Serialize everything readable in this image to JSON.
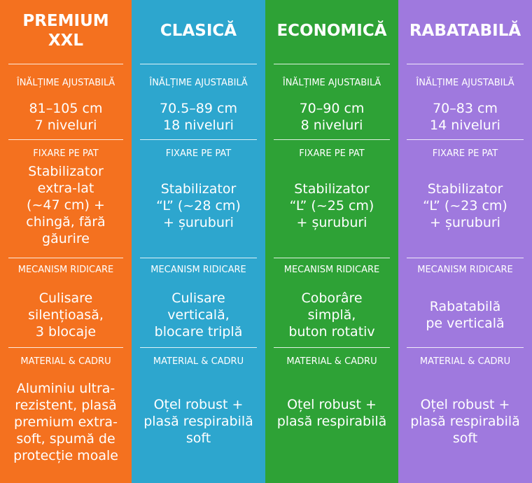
{
  "columns": [
    {
      "title": "PREMIUM\nXXL",
      "height_label": "ÎNĂLȚIME AJUSTABILĂ",
      "height_value": "81–105 cm\n7 niveluri",
      "fix_label": "FIXARE PE PAT",
      "fix_value": "Stabilizator\nextra-lat\n(~47 cm) +\nchingă, fără\ngăurire",
      "mech_label": "MECANISM RIDICARE",
      "mech_value": "Culisare\nsilențioasă,\n3 blocaje",
      "mat_label": "MATERIAL & CADRU",
      "mat_value": "Aluminiu ultra-\nrezistent, plasă\npremium extra-\nsoft, spumă de\nprotecție moale",
      "color": "#f4711f"
    },
    {
      "title": "CLASICĂ",
      "height_label": "ÎNĂLȚIME AJUSTABILĂ",
      "height_value": "70.5–89 cm\n18 niveluri",
      "fix_label": "FIXARE PE PAT",
      "fix_value": "Stabilizator\n“L” (~28 cm)\n+ șuruburi",
      "mech_label": "MECANISM RIDICARE",
      "mech_value": "Culisare\nverticală,\nblocare triplă",
      "mat_label": "MATERIAL & CADRU",
      "mat_value": "Oțel robust +\nplasă respirabilă\nsoft",
      "color": "#2da6ce"
    },
    {
      "title": "ECONOMICĂ",
      "height_label": "ÎNĂLȚIME AJUSTABILĂ",
      "height_value": "70–90 cm\n8 niveluri",
      "fix_label": "FIXARE PE PAT",
      "fix_value": "Stabilizator\n“L” (~25 cm)\n+ șuruburi",
      "mech_label": "MECANISM RIDICARE",
      "mech_value": "Coborâre\nsimplă,\nbuton rotativ",
      "mat_label": "MATERIAL & CADRU",
      "mat_value": "Oțel robust +\nplasă respirabilă",
      "color": "#2ea236"
    },
    {
      "title": "RABATABILĂ",
      "height_label": "ÎNĂLȚIME AJUSTABILĂ",
      "height_value": "70–83 cm\n14 niveluri",
      "fix_label": "FIXARE PE PAT",
      "fix_value": "Stabilizator\n“L” (~23 cm)\n+ șuruburi",
      "mech_label": "MECANISM RIDICARE",
      "mech_value": "Rabatabilă\npe verticală",
      "mat_label": "MATERIAL & CADRU",
      "mat_value": "Oțel robust +\nplasă respirabilă\nsoft",
      "color": "#9f79de"
    }
  ]
}
